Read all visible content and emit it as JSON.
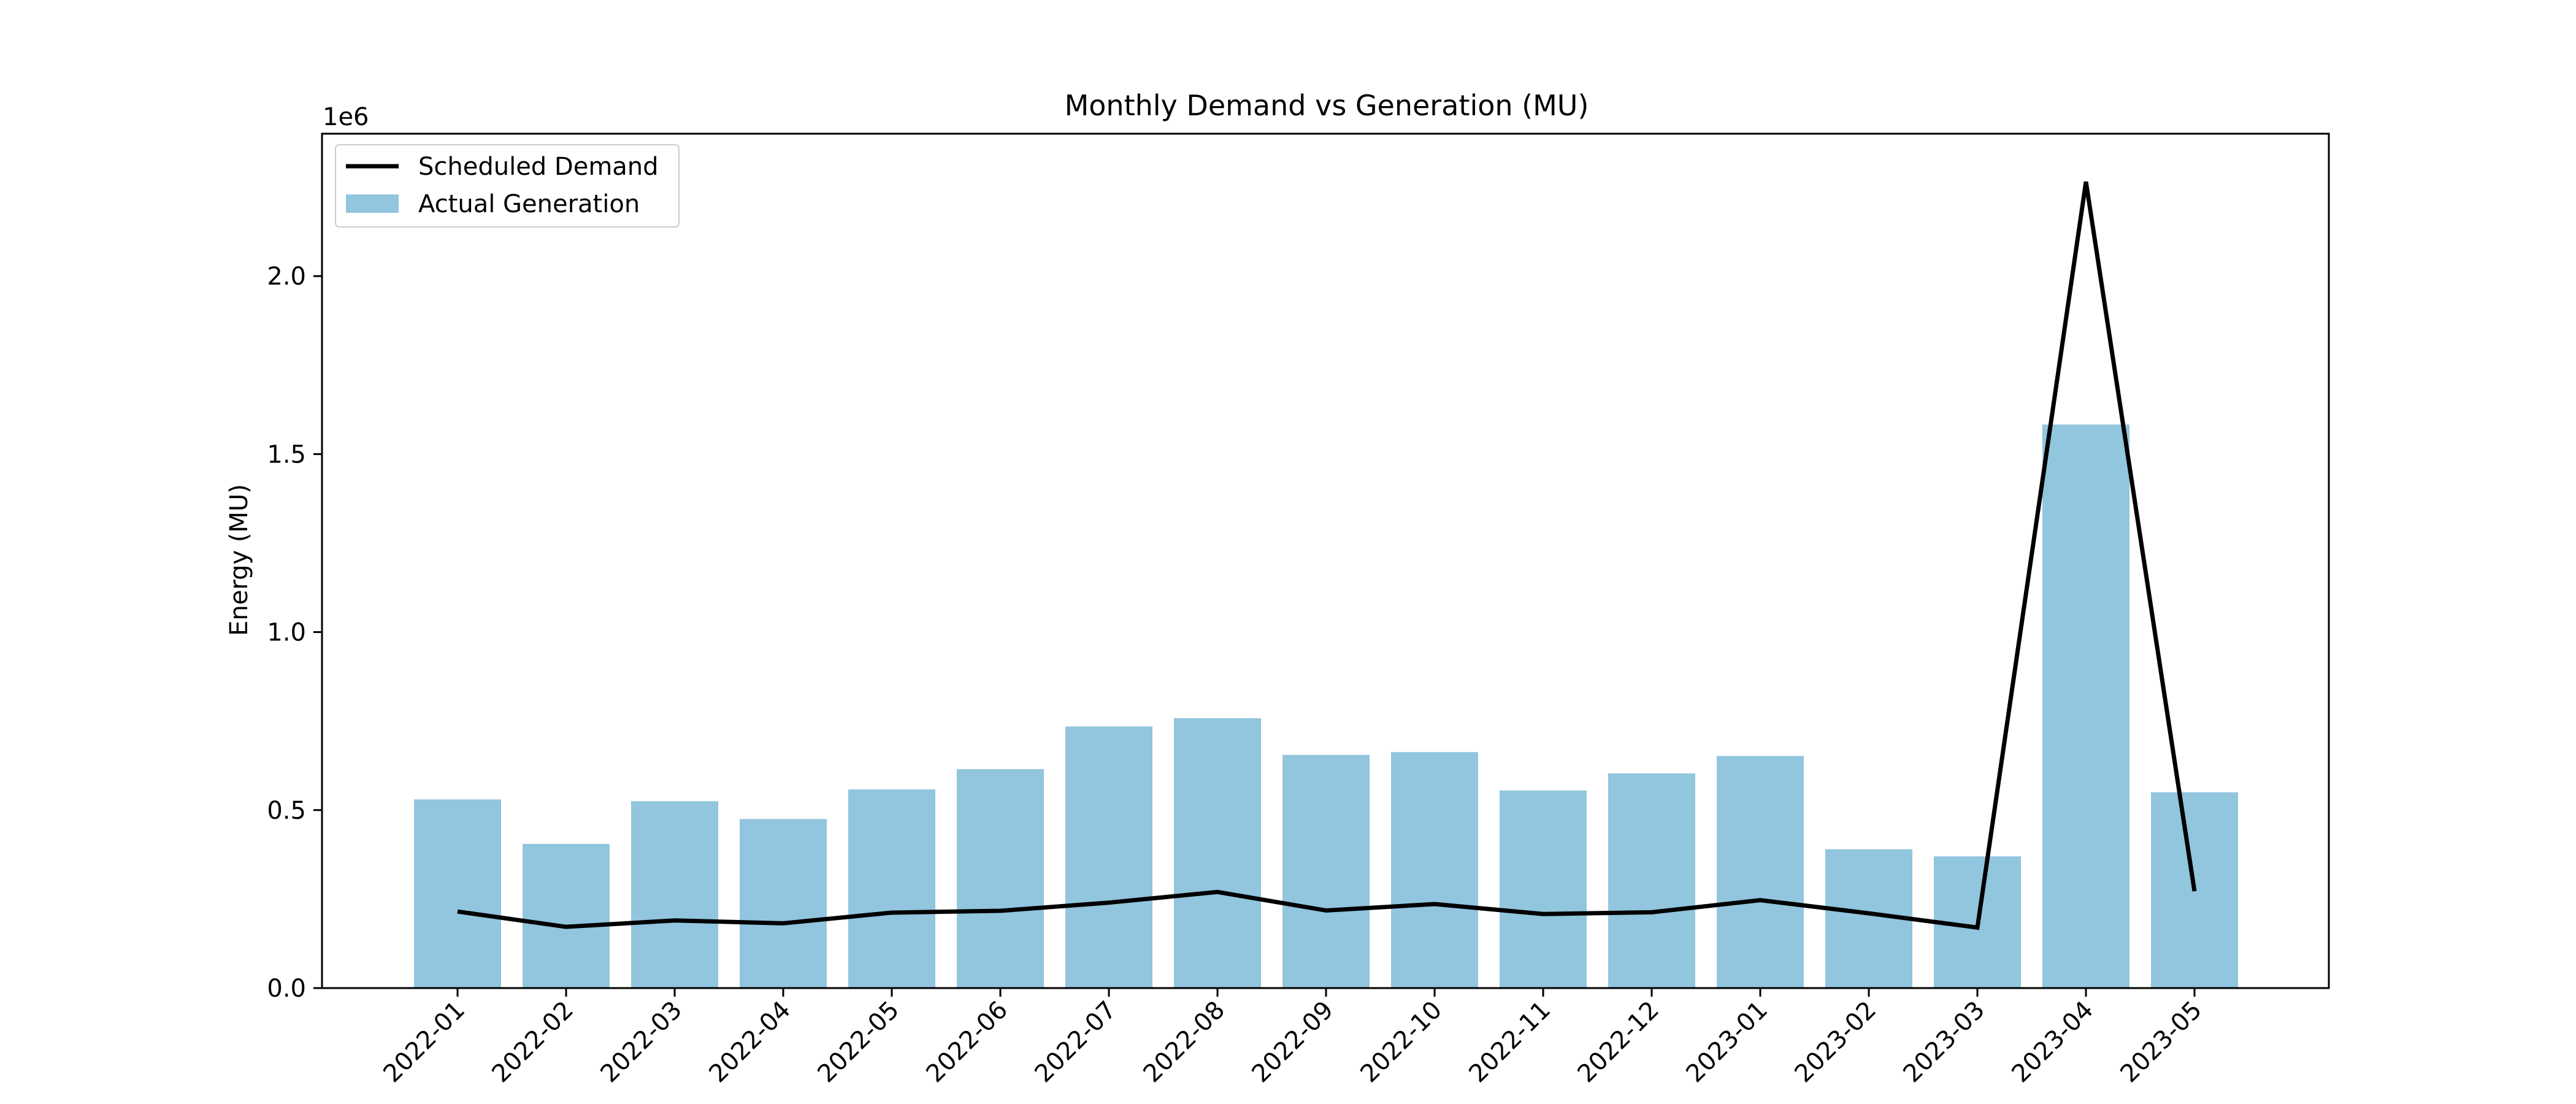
{
  "chart_data": {
    "type": "bar",
    "title": "Monthly Demand vs Generation (MU)",
    "xlabel": "",
    "ylabel": "Energy (MU)",
    "y_offset_label": "1e6",
    "ylim": [
      0,
      2400000
    ],
    "yticks": [
      0,
      500000,
      1000000,
      1500000,
      2000000
    ],
    "ytick_labels": [
      "0.0",
      "0.5",
      "1.0",
      "1.5",
      "2.0"
    ],
    "grid": false,
    "legend_position": "upper-left",
    "categories": [
      "2022-01",
      "2022-02",
      "2022-03",
      "2022-04",
      "2022-05",
      "2022-06",
      "2022-07",
      "2022-08",
      "2022-09",
      "2022-10",
      "2022-11",
      "2022-12",
      "2023-01",
      "2023-02",
      "2023-03",
      "2023-04",
      "2023-05"
    ],
    "series": [
      {
        "name": "Scheduled Demand",
        "type": "line",
        "color": "#000000",
        "values": [
          215000,
          172000,
          190000,
          182000,
          212000,
          217000,
          240000,
          270000,
          218000,
          236000,
          208000,
          213000,
          247000,
          210000,
          170000,
          2265000,
          272000
        ]
      },
      {
        "name": "Actual Generation",
        "type": "bar",
        "color": "#92c5de",
        "values": [
          530000,
          405000,
          525000,
          475000,
          558000,
          615000,
          735000,
          758000,
          655000,
          663000,
          555000,
          603000,
          652000,
          390000,
          370000,
          1583000,
          550000
        ]
      }
    ]
  }
}
